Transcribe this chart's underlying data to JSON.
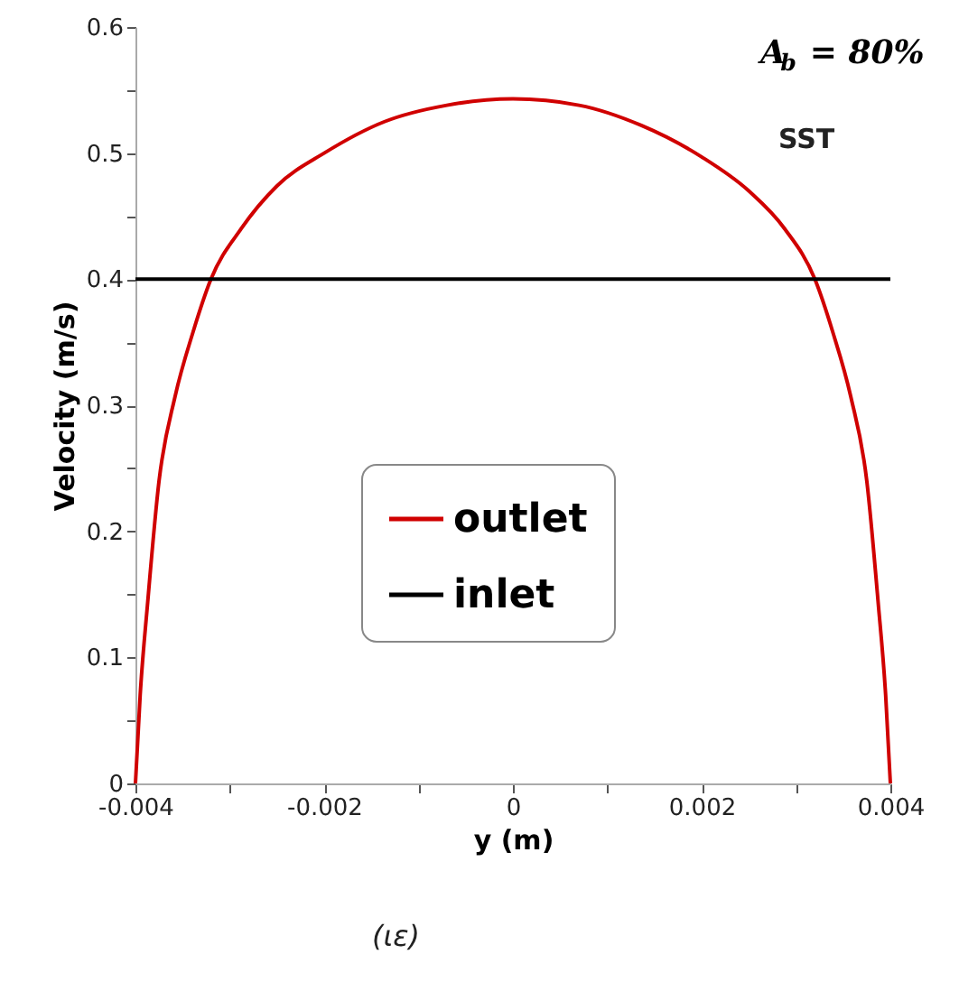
{
  "chart_data": {
    "type": "line",
    "xlabel": "y (m)",
    "ylabel": "Velocity (m/s)",
    "series": [
      {
        "name": "outlet",
        "color": "#d00000",
        "x": [
          -0.004,
          -0.00395,
          -0.00387,
          -0.00375,
          -0.00358,
          -0.00339,
          -0.0032,
          -0.00288,
          -0.0025,
          -0.002,
          -0.00136,
          -0.0007,
          0,
          0.0007,
          0.00136,
          0.002,
          0.0025,
          0.00288,
          0.0032,
          0.00339,
          0.00358,
          0.00375,
          0.00387,
          0.00395,
          0.004
        ],
        "values": [
          0,
          0.07,
          0.144,
          0.24,
          0.307,
          0.358,
          0.4,
          0.44,
          0.474,
          0.5,
          0.525,
          0.538,
          0.543,
          0.538,
          0.522,
          0.497,
          0.47,
          0.44,
          0.4,
          0.358,
          0.307,
          0.24,
          0.144,
          0.07,
          0
        ]
      },
      {
        "name": "inlet",
        "color": "#000000",
        "x": [
          -0.004,
          0.004
        ],
        "values": [
          0.4,
          0.4
        ]
      }
    ],
    "xlim": [
      -0.004,
      0.004
    ],
    "ylim": [
      0,
      0.6
    ],
    "xticks": [
      -0.004,
      {
        "value": -0.003,
        "label": null
      },
      -0.002,
      {
        "value": -0.001,
        "label": null
      },
      0,
      {
        "value": 0.001,
        "label": null
      },
      0.002,
      {
        "value": 0.003,
        "label": null
      },
      0.004
    ],
    "yticks": [
      0,
      {
        "value": 0.05,
        "label": null
      },
      0.1,
      {
        "value": 0.15,
        "label": null
      },
      0.2,
      {
        "value": 0.25,
        "label": null
      },
      0.3,
      {
        "value": 0.35,
        "label": null
      },
      0.4,
      {
        "value": 0.45,
        "label": null
      },
      0.5,
      {
        "value": 0.55,
        "label": null
      },
      0.6
    ],
    "grid": false,
    "legend": "bottom",
    "marker": "none",
    "line_style": "solid",
    "annotations": [
      "A$_{b}$ = 80%",
      "SST",
      "(ιε)"
    ]
  }
}
